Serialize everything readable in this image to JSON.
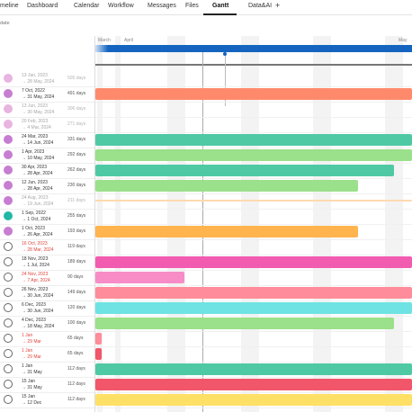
{
  "tabs": [
    "meline",
    "Dashboard",
    "Calendar",
    "Workflow",
    "Messages",
    "Files",
    "Gantt",
    "Data&AI"
  ],
  "subnote": "date",
  "months": [
    "March",
    "April",
    "May"
  ],
  "rows": [
    {
      "start": "13 Jan, 2023",
      "end": "→ 28 May, 2024",
      "days": "505 days"
    },
    {
      "start": "7 Oct, 2022",
      "end": "→ 31 May, 2024",
      "days": "491 days"
    },
    {
      "start": "13 Jun, 2023",
      "end": "→ 30 May, 2024",
      "days": "306 days"
    },
    {
      "start": "20 Feb, 2023",
      "end": "→ 4 Mar, 2024",
      "days": "271 days"
    },
    {
      "start": "24 Mar, 2023",
      "end": "→ 14 Jun, 2024",
      "days": "331 days"
    },
    {
      "start": "1 Apr, 2023",
      "end": "→ 10 May, 2024",
      "days": "292 days"
    },
    {
      "start": "30 Apr, 2023",
      "end": "→ 28 Apr, 2024",
      "days": "262 days"
    },
    {
      "start": "12 Jun, 2023",
      "end": "→ 28 Apr, 2024",
      "days": "230 days"
    },
    {
      "start": "24 Aug, 2023",
      "end": "→ 19 Jun, 2024",
      "days": "211 days"
    },
    {
      "start": "1 Sep, 2022",
      "end": "→ 1 Oct, 2024",
      "days": "255 days"
    },
    {
      "start": "1 Oct, 2023",
      "end": "→ 26 Apr, 2024",
      "days": "193 days"
    },
    {
      "start": "16 Oct, 2023",
      "end": "→ 28 Mar, 2024",
      "days": "119 days"
    },
    {
      "start": "18 Nov, 2023",
      "end": "→ 1 Jul, 2024",
      "days": "189 days"
    },
    {
      "start": "24 Nov, 2023",
      "end": "→ 7 Apr, 2024",
      "days": "90 days"
    },
    {
      "start": "26 Nov, 2023",
      "end": "→ 30 Jun, 2024",
      "days": "149 days"
    },
    {
      "start": "6 Dec, 2023",
      "end": "→ 30 Jun, 2024",
      "days": "120 days"
    },
    {
      "start": "4 Dec, 2023",
      "end": "→ 18 May, 2024",
      "days": "100 days"
    },
    {
      "start": "1 Jan",
      "end": "→ 29 Mar",
      "days": "65 days"
    },
    {
      "start": "1 Jan",
      "end": "→ 29 Mar",
      "days": "65 days"
    },
    {
      "start": "1 Jan",
      "end": "→ 31 May",
      "days": "112 days"
    },
    {
      "start": "15 Jan",
      "end": "→ 31 May",
      "days": "112 days"
    },
    {
      "start": "15 Jan",
      "end": "→ 12 Dec",
      "days": "112 days"
    }
  ]
}
